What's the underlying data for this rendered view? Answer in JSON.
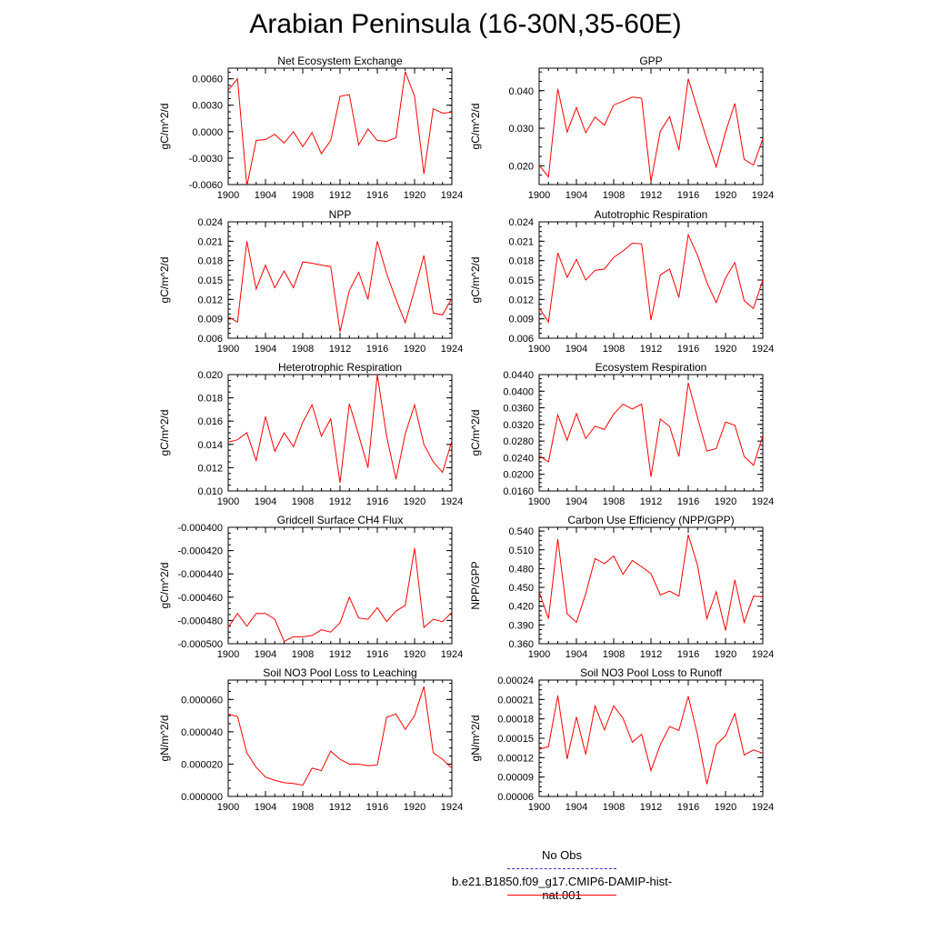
{
  "title": "Arabian Peninsula (16-30N,35-60E)",
  "colors": {
    "series": "#ff0000",
    "obs": "#3333cc",
    "axis": "#000000"
  },
  "legend": {
    "obs_label": "No Obs",
    "model_label": "b.e21.B1850.f09_g17.CMIP6-DAMIP-hist-nat.001"
  },
  "chart_data": [
    {
      "type": "line",
      "title": "Net Ecosystem Exchange",
      "xlabel": "",
      "ylabel": "gC/m^2/d",
      "xlim": [
        1900,
        1924
      ],
      "ylim": [
        -0.006,
        0.0072
      ],
      "xticks": [
        "1900",
        "1904",
        "1908",
        "1912",
        "1916",
        "1920",
        "1924"
      ],
      "yticks": [
        "-0.0060",
        "-0.0030",
        "0.0000",
        "0.0030",
        "0.0060"
      ],
      "x_start": 1900,
      "values": [
        0.0047,
        0.006,
        -0.0062,
        -0.001,
        -0.0009,
        -0.0003,
        -0.0013,
        0.0,
        -0.0017,
        -0.0001,
        -0.0025,
        -0.001,
        0.004,
        0.0042,
        -0.0015,
        0.0003,
        -0.001,
        -0.0011,
        -0.0007,
        0.0068,
        0.004,
        -0.0048,
        0.0026,
        0.0021,
        0.0022
      ]
    },
    {
      "type": "line",
      "title": "GPP",
      "xlabel": "",
      "ylabel": "gC/m^2/d",
      "xlim": [
        1900,
        1924
      ],
      "ylim": [
        0.015,
        0.046
      ],
      "xticks": [
        "1900",
        "1904",
        "1908",
        "1912",
        "1916",
        "1920",
        "1924"
      ],
      "yticks": [
        "0.020",
        "0.030",
        "0.040"
      ],
      "x_start": 1900,
      "values": [
        0.0202,
        0.017,
        0.0405,
        0.029,
        0.0355,
        0.0288,
        0.033,
        0.0308,
        0.0362,
        0.0372,
        0.0383,
        0.038,
        0.0158,
        0.0292,
        0.0331,
        0.0242,
        0.0432,
        0.035,
        0.027,
        0.0197,
        0.029,
        0.0366,
        0.0217,
        0.0202,
        0.0272
      ]
    },
    {
      "type": "line",
      "title": "NPP",
      "xlabel": "",
      "ylabel": "gC/m^2/d",
      "xlim": [
        1900,
        1924
      ],
      "ylim": [
        0.006,
        0.024
      ],
      "xticks": [
        "1900",
        "1904",
        "1908",
        "1912",
        "1916",
        "1920",
        "1924"
      ],
      "yticks": [
        "0.006",
        "0.009",
        "0.012",
        "0.015",
        "0.018",
        "0.021",
        "0.024"
      ],
      "x_start": 1900,
      "values": [
        0.0093,
        0.0085,
        0.021,
        0.0136,
        0.0173,
        0.0138,
        0.0164,
        0.0138,
        0.0178,
        0.0176,
        0.0173,
        0.0171,
        0.007,
        0.0134,
        0.0162,
        0.012,
        0.021,
        0.016,
        0.012,
        0.0084,
        0.0135,
        0.0188,
        0.0099,
        0.0096,
        0.0122
      ]
    },
    {
      "type": "line",
      "title": "Autotrophic Respiration",
      "xlabel": "",
      "ylabel": "gC/m^2/d",
      "xlim": [
        1900,
        1924
      ],
      "ylim": [
        0.006,
        0.024
      ],
      "xticks": [
        "1900",
        "1904",
        "1908",
        "1912",
        "1916",
        "1920",
        "1924"
      ],
      "yticks": [
        "0.006",
        "0.009",
        "0.012",
        "0.015",
        "0.018",
        "0.021",
        "0.024"
      ],
      "x_start": 1900,
      "values": [
        0.0107,
        0.0085,
        0.0192,
        0.0154,
        0.0182,
        0.015,
        0.0165,
        0.0167,
        0.0185,
        0.0195,
        0.0207,
        0.0206,
        0.0088,
        0.0158,
        0.0167,
        0.0123,
        0.022,
        0.0188,
        0.0146,
        0.0115,
        0.0153,
        0.0177,
        0.0118,
        0.0106,
        0.015
      ]
    },
    {
      "type": "line",
      "title": "Heterotrophic Respiration",
      "xlabel": "",
      "ylabel": "gC/m^2/d",
      "xlim": [
        1900,
        1924
      ],
      "ylim": [
        0.01,
        0.02
      ],
      "xticks": [
        "1900",
        "1904",
        "1908",
        "1912",
        "1916",
        "1920",
        "1924"
      ],
      "yticks": [
        "0.010",
        "0.012",
        "0.014",
        "0.016",
        "0.018",
        "0.020"
      ],
      "x_start": 1900,
      "values": [
        0.0142,
        0.0144,
        0.015,
        0.0126,
        0.0164,
        0.0134,
        0.015,
        0.0138,
        0.0159,
        0.0174,
        0.0147,
        0.0162,
        0.0107,
        0.0175,
        0.0148,
        0.012,
        0.02,
        0.0147,
        0.011,
        0.0149,
        0.0174,
        0.014,
        0.0125,
        0.0116,
        0.0143
      ]
    },
    {
      "type": "line",
      "title": "Ecosystem Respiration",
      "xlabel": "",
      "ylabel": "gC/m^2/d",
      "xlim": [
        1900,
        1924
      ],
      "ylim": [
        0.016,
        0.044
      ],
      "xticks": [
        "1900",
        "1904",
        "1908",
        "1912",
        "1916",
        "1920",
        "1924"
      ],
      "yticks": [
        "0.0160",
        "0.0200",
        "0.0240",
        "0.0280",
        "0.0320",
        "0.0360",
        "0.0400",
        "0.0440"
      ],
      "x_start": 1900,
      "values": [
        0.0245,
        0.023,
        0.0343,
        0.0282,
        0.0346,
        0.0286,
        0.0316,
        0.0308,
        0.0345,
        0.0369,
        0.0357,
        0.0369,
        0.0194,
        0.0333,
        0.0315,
        0.0243,
        0.042,
        0.0336,
        0.0256,
        0.0262,
        0.0326,
        0.0318,
        0.0243,
        0.0222,
        0.0292
      ]
    },
    {
      "type": "line",
      "title": "Gridcell Surface CH4 Flux",
      "xlabel": "",
      "ylabel": "gC/m^2/d",
      "xlim": [
        1900,
        1924
      ],
      "ylim": [
        -0.0005,
        -0.0004
      ],
      "xticks": [
        "1900",
        "1904",
        "1908",
        "1912",
        "1916",
        "1920",
        "1924"
      ],
      "yticks": [
        "-0.000500",
        "-0.000480",
        "-0.000460",
        "-0.000440",
        "-0.000420",
        "-0.000400"
      ],
      "x_start": 1900,
      "values": [
        -0.000486,
        -0.000474,
        -0.000485,
        -0.000474,
        -0.000474,
        -0.000479,
        -0.000498,
        -0.000494,
        -0.000494,
        -0.000493,
        -0.000488,
        -0.00049,
        -0.000482,
        -0.00046,
        -0.000478,
        -0.000479,
        -0.000469,
        -0.000481,
        -0.000472,
        -0.000467,
        -0.000418,
        -0.000486,
        -0.000479,
        -0.000481,
        -0.000473
      ]
    },
    {
      "type": "line",
      "title": "Carbon Use Efficiency (NPP/GPP)",
      "xlabel": "",
      "ylabel": "NPP/GPP",
      "xlim": [
        1900,
        1924
      ],
      "ylim": [
        0.36,
        0.546
      ],
      "xticks": [
        "1900",
        "1904",
        "1908",
        "1912",
        "1916",
        "1920",
        "1924"
      ],
      "yticks": [
        "0.360",
        "0.390",
        "0.420",
        "0.450",
        "0.480",
        "0.510",
        "0.540"
      ],
      "x_start": 1900,
      "values": [
        0.443,
        0.4,
        0.527,
        0.408,
        0.394,
        0.44,
        0.496,
        0.488,
        0.5,
        0.471,
        0.493,
        0.483,
        0.472,
        0.438,
        0.444,
        0.436,
        0.534,
        0.485,
        0.4,
        0.443,
        0.381,
        0.462,
        0.394,
        0.436,
        0.435
      ]
    },
    {
      "type": "line",
      "title": "Soil NO3 Pool Loss to Leaching",
      "xlabel": "",
      "ylabel": "gN/m^2/d",
      "xlim": [
        1900,
        1924
      ],
      "ylim": [
        0.0,
        7.2e-05
      ],
      "xticks": [
        "1900",
        "1904",
        "1908",
        "1912",
        "1916",
        "1920",
        "1924"
      ],
      "yticks": [
        "0.000000",
        "0.000020",
        "0.000040",
        "0.000060"
      ],
      "x_start": 1900,
      "values": [
        5.1e-05,
        4.95e-05,
        2.7e-05,
        1.8e-05,
        1.2e-05,
        1e-05,
        8.5e-06,
        8e-06,
        7e-06,
        1.75e-05,
        1.6e-05,
        2.8e-05,
        2.3e-05,
        2e-05,
        2e-05,
        1.9e-05,
        1.95e-05,
        4.9e-05,
        5.1e-05,
        4.15e-05,
        5e-05,
        6.8e-05,
        2.7e-05,
        2.3e-05,
        1.75e-05
      ]
    },
    {
      "type": "line",
      "title": "Soil NO3 Pool Loss to Runoff",
      "xlabel": "",
      "ylabel": "gN/m^2/d",
      "xlim": [
        1900,
        1924
      ],
      "ylim": [
        6e-05,
        0.00024
      ],
      "xticks": [
        "1900",
        "1904",
        "1908",
        "1912",
        "1916",
        "1920",
        "1924"
      ],
      "yticks": [
        "0.00006",
        "0.00009",
        "0.00012",
        "0.00015",
        "0.00018",
        "0.00021",
        "0.00024"
      ],
      "x_start": 1900,
      "values": [
        0.000133,
        0.000137,
        0.000216,
        0.000118,
        0.000183,
        0.000125,
        0.0002,
        0.000163,
        0.0002,
        0.000181,
        0.000144,
        0.000156,
        0.0001,
        0.00014,
        0.000168,
        0.000162,
        0.000215,
        0.000155,
        7.9e-05,
        0.00014,
        0.000154,
        0.000188,
        0.000124,
        0.000132,
        0.000127
      ]
    }
  ]
}
